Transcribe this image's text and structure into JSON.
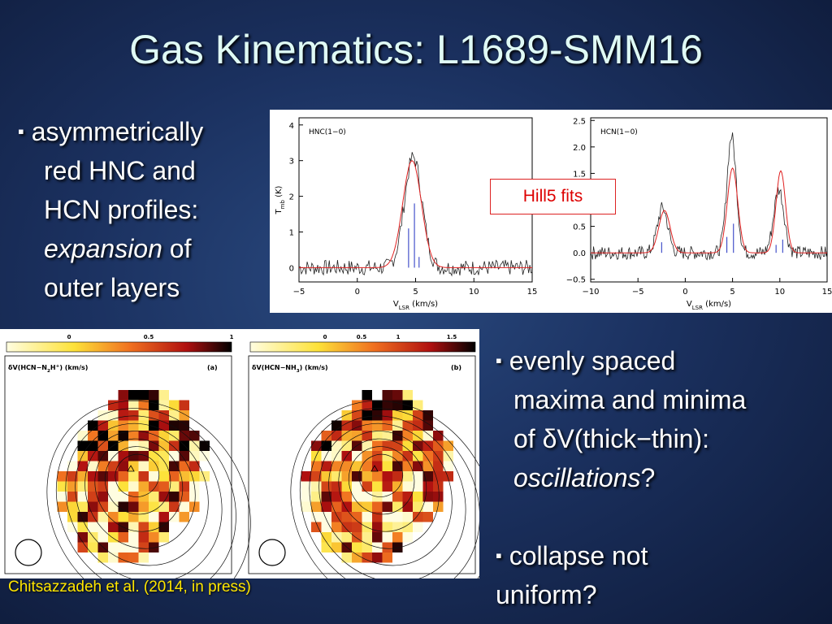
{
  "title": "Gas Kinematics: L1689-SMM16",
  "left_bullet": {
    "marker": "▪",
    "lines": [
      "asymmetrically",
      "red HNC and",
      "HCN profiles:"
    ],
    "italic": "expansion",
    "after_italic": " of",
    "last_line": "outer layers"
  },
  "right_bullets": [
    {
      "marker": "▪",
      "lines": [
        "evenly spaced",
        "maxima and minima",
        "of δV(thick−thin):"
      ],
      "italic": "oscillations",
      "after_italic": "?"
    },
    {
      "marker": "▪",
      "lines": [
        "collapse not",
        "uniform?"
      ]
    }
  ],
  "spectra": {
    "annotation": "Hill5 fits",
    "panels": [
      {
        "label": "HNC(1−0)",
        "yticks": [
          "0",
          "1",
          "2",
          "3",
          "4"
        ],
        "xticks": [
          "−5",
          "0",
          "5",
          "10",
          "15"
        ],
        "ylabel": {
          "main": "T",
          "sub": "mb",
          "rest": "  (K)"
        },
        "xlabel": {
          "main": "V",
          "sub": "LSR",
          "rest": " (km/s)"
        }
      },
      {
        "label": "HCN(1−0)",
        "yticks": [
          "−0.5",
          "0.0",
          "0.5",
          "1.0",
          "1.5",
          "2.0",
          "2.5"
        ],
        "xticks": [
          "−10",
          "−5",
          "0",
          "5",
          "10",
          "15"
        ],
        "xlabel": {
          "main": "V",
          "sub": "LSR",
          "rest": " (km/s)"
        }
      }
    ]
  },
  "maps": {
    "panels": [
      {
        "colorbar_ticks": [
          "0",
          "0.5",
          "1"
        ],
        "label": {
          "main": "δV(HCN−N",
          "sub": "2",
          "sup": "H",
          "sup2": "+",
          "rest": ")  (km/s)"
        },
        "tag": "(a)"
      },
      {
        "colorbar_ticks": [
          "0",
          "0.5",
          "1",
          "1.5"
        ],
        "label": {
          "main": "δV(HCN−NH",
          "sub": "3",
          "rest": ")  (km/s)"
        },
        "tag": "(b)"
      }
    ]
  },
  "citation": "Chitsazzadeh et al. (2014, in press)"
}
